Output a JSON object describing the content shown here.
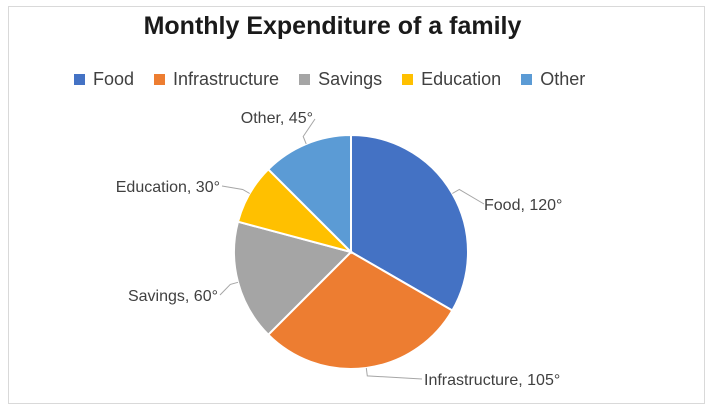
{
  "chart_data": {
    "type": "pie",
    "title": "Monthly Expenditure of a family",
    "legend_position": "top",
    "categories": [
      "Food",
      "Infrastructure",
      "Savings",
      "Education",
      "Other"
    ],
    "values": [
      120,
      105,
      60,
      30,
      45
    ],
    "value_unit": "°",
    "colors": [
      "#4472C4",
      "#ED7D31",
      "#A5A5A5",
      "#FFC000",
      "#5B9BD5"
    ],
    "labels": [
      "Food, 120°",
      "Infrastructure, 105°",
      "Savings, 60°",
      "Education, 30°",
      "Other, 45°"
    ]
  }
}
